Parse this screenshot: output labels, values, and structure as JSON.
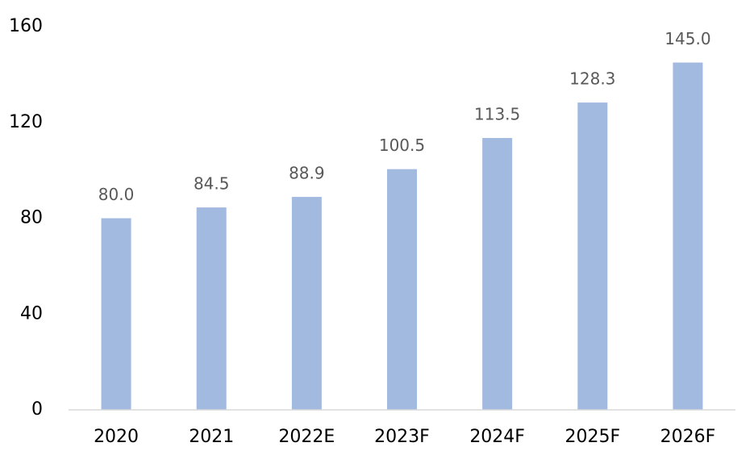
{
  "chart_data": {
    "type": "bar",
    "categories": [
      "2020",
      "2021",
      "2022E",
      "2023F",
      "2024F",
      "2025F",
      "2026F"
    ],
    "values": [
      80.0,
      84.5,
      88.9,
      100.5,
      113.5,
      128.3,
      145.0
    ],
    "value_labels": [
      "80.0",
      "84.5",
      "88.9",
      "100.5",
      "113.5",
      "128.3",
      "145.0"
    ],
    "color": "#a2b9e0",
    "ylim": [
      0,
      160
    ],
    "yticks": [
      0,
      40,
      80,
      120,
      160
    ],
    "grid": false
  }
}
